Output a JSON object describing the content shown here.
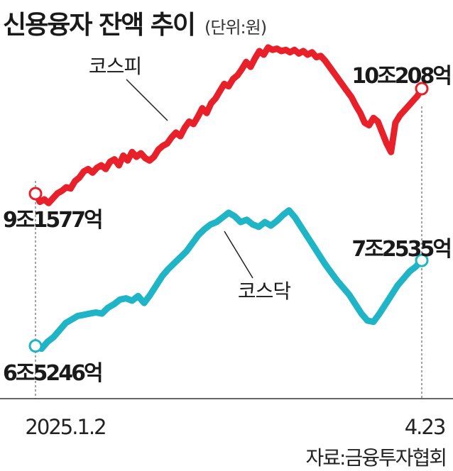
{
  "header": {
    "title": "신용융자 잔액 추이",
    "unit": "(단위:원)"
  },
  "source": "자료:금융투자협회",
  "colors": {
    "kospi": "#e8202a",
    "kosdaq": "#1fb4c6",
    "axis": "#333333"
  },
  "chart_data": {
    "type": "line",
    "title": "신용융자 잔액 추이",
    "x_labels": [
      "2025.1.2",
      "4.23"
    ],
    "series": [
      {
        "name": "코스피",
        "start_label": "9조1577억",
        "end_label": "10조208억",
        "values": [
          9.1577,
          9.09,
          9.11,
          9.08,
          9.12,
          9.16,
          9.18,
          9.21,
          9.2,
          9.26,
          9.29,
          9.34,
          9.36,
          9.33,
          9.37,
          9.39,
          9.36,
          9.42,
          9.44,
          9.39,
          9.47,
          9.43,
          9.5,
          9.46,
          9.49,
          9.45,
          9.43,
          9.46,
          9.52,
          9.55,
          9.57,
          9.62,
          9.66,
          9.63,
          9.7,
          9.75,
          9.73,
          9.79,
          9.86,
          9.82,
          9.9,
          9.94,
          10.0,
          10.06,
          10.04,
          10.1,
          10.13,
          10.18,
          10.24,
          10.2,
          10.27,
          10.33,
          10.3,
          10.36,
          10.34,
          10.35,
          10.33,
          10.34,
          10.32,
          10.34,
          10.31,
          10.33,
          10.3,
          10.32,
          10.28,
          10.29,
          10.25,
          10.2,
          10.15,
          10.1,
          10.05,
          10.0,
          9.95,
          9.88,
          9.82,
          9.74,
          9.72,
          9.78,
          9.75,
          9.66,
          9.57,
          9.5,
          9.74,
          9.8,
          9.84,
          9.88,
          9.92,
          9.96,
          10.0208
        ]
      },
      {
        "name": "코스닥",
        "start_label": "6조5246억",
        "end_label": "7조2535억",
        "values": [
          6.5246,
          6.5,
          6.56,
          6.6,
          6.66,
          6.72,
          6.75,
          6.78,
          6.79,
          6.8,
          6.81,
          6.8,
          6.85,
          6.88,
          6.92,
          6.93,
          6.91,
          6.95,
          6.89,
          6.96,
          7.04,
          7.12,
          7.18,
          7.23,
          7.28,
          7.33,
          7.4,
          7.47,
          7.52,
          7.56,
          7.58,
          7.62,
          7.66,
          7.63,
          7.58,
          7.6,
          7.56,
          7.54,
          7.58,
          7.55,
          7.59,
          7.64,
          7.68,
          7.62,
          7.54,
          7.46,
          7.38,
          7.3,
          7.22,
          7.15,
          7.08,
          7.02,
          6.96,
          6.88,
          6.8,
          6.74,
          6.73,
          6.8,
          6.88,
          6.96,
          7.04,
          7.1,
          7.16,
          7.2,
          7.2535
        ]
      }
    ]
  }
}
